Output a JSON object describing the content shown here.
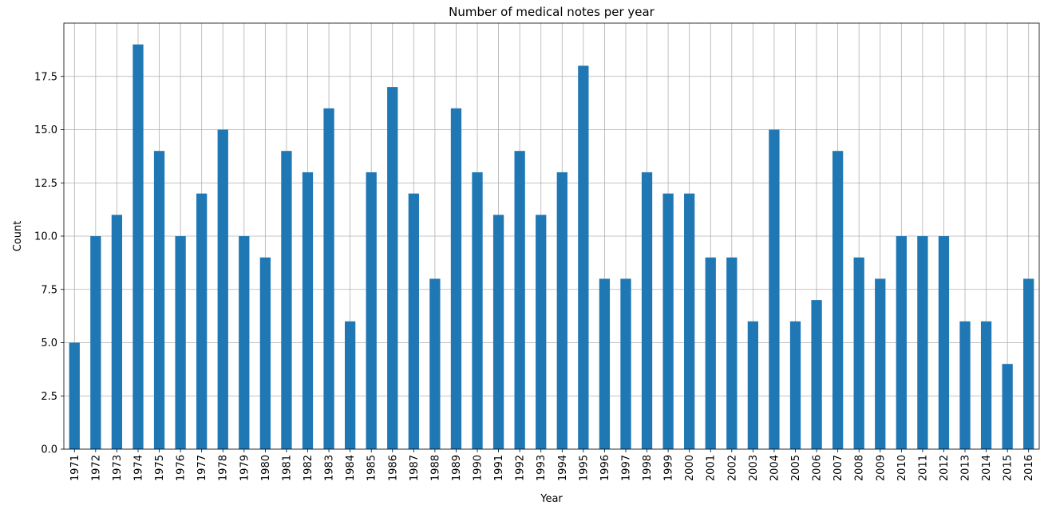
{
  "chart_data": {
    "type": "bar",
    "title": "Number of medical notes per year",
    "xlabel": "Year",
    "ylabel": "Count",
    "ylim": [
      0,
      20
    ],
    "yticks": [
      0.0,
      2.5,
      5.0,
      7.5,
      10.0,
      12.5,
      15.0,
      17.5
    ],
    "ytick_labels": [
      "0.0",
      "2.5",
      "5.0",
      "7.5",
      "10.0",
      "12.5",
      "15.0",
      "17.5"
    ],
    "grid": true,
    "bar_color": "#1f77b4",
    "categories": [
      "1971",
      "1972",
      "1973",
      "1974",
      "1975",
      "1976",
      "1977",
      "1978",
      "1979",
      "1980",
      "1981",
      "1982",
      "1983",
      "1984",
      "1985",
      "1986",
      "1987",
      "1988",
      "1989",
      "1990",
      "1991",
      "1992",
      "1993",
      "1994",
      "1995",
      "1996",
      "1997",
      "1998",
      "1999",
      "2000",
      "2001",
      "2002",
      "2003",
      "2004",
      "2005",
      "2006",
      "2007",
      "2008",
      "2009",
      "2010",
      "2011",
      "2012",
      "2013",
      "2014",
      "2015",
      "2016"
    ],
    "values": [
      5,
      10,
      11,
      19,
      14,
      10,
      12,
      15,
      10,
      9,
      14,
      13,
      16,
      6,
      13,
      17,
      12,
      8,
      16,
      13,
      11,
      14,
      11,
      13,
      18,
      8,
      8,
      13,
      12,
      12,
      9,
      9,
      6,
      15,
      6,
      7,
      14,
      9,
      8,
      10,
      10,
      10,
      6,
      6,
      4,
      8
    ]
  }
}
